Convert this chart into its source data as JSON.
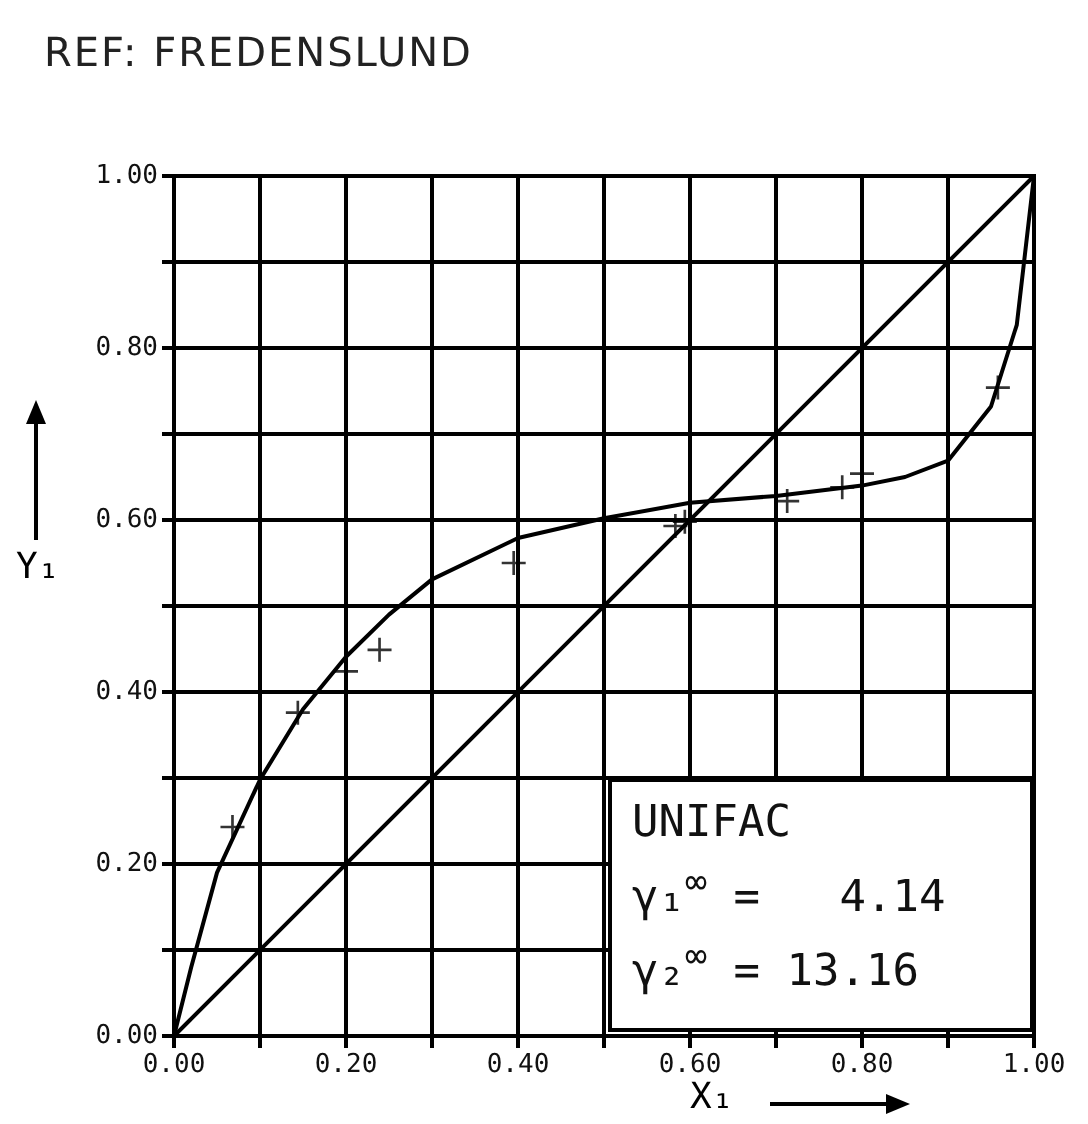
{
  "chart_data": {
    "type": "scatter",
    "title": "REF: FREDENSLUND",
    "xlabel": "X₁",
    "ylabel": "Y₁",
    "annotations": [
      "UNIFAC",
      "γ₁$^{∞}$ =   4.14",
      "γ₂$^{∞}$ = 13.16"
    ],
    "series": [
      {
        "color": "#000000",
        "marker": "cross",
        "x": [
          0.068,
          0.144,
          0.2,
          0.239,
          0.395,
          0.583,
          0.594,
          0.713,
          0.777,
          0.8,
          0.958
        ],
        "values": [
          0.243,
          0.376,
          0.424,
          0.449,
          0.55,
          0.593,
          0.598,
          0.622,
          0.638,
          0.654,
          0.754
        ]
      },
      {
        "type": "line",
        "color": "#000000",
        "marker": "none",
        "x": [
          0,
          0.02,
          0.05,
          0.1,
          0.15,
          0.2,
          0.25,
          0.3,
          0.4,
          0.5,
          0.6,
          0.7,
          0.8,
          0.85,
          0.9,
          0.95,
          0.98,
          1
        ],
        "values": [
          0,
          0.08,
          0.19,
          0.298,
          0.38,
          0.441,
          0.49,
          0.531,
          0.579,
          0.602,
          0.62,
          0.628,
          0.64,
          0.65,
          0.669,
          0.732,
          0.827,
          1
        ]
      },
      {
        "type": "line",
        "color": "#000000",
        "marker": "none",
        "x": [
          0,
          1
        ],
        "values": [
          0,
          1
        ]
      }
    ],
    "xlim": [
      0,
      1
    ],
    "ylim": [
      0,
      1
    ],
    "xticks": [
      {
        "value": 0,
        "label": "0.00"
      },
      {
        "value": 0.1,
        "label": null
      },
      {
        "value": 0.2,
        "label": "0.20"
      },
      {
        "value": 0.3,
        "label": null
      },
      {
        "value": 0.4,
        "label": "0.40"
      },
      {
        "value": 0.5,
        "label": null
      },
      {
        "value": 0.6,
        "label": "0.60"
      },
      {
        "value": 0.7,
        "label": null
      },
      {
        "value": 0.8,
        "label": "0.80"
      },
      {
        "value": 0.9,
        "label": null
      },
      {
        "value": 1,
        "label": "1.00"
      }
    ],
    "yticks": [
      {
        "value": 0,
        "label": "0.00"
      },
      {
        "value": 0.1,
        "label": null
      },
      {
        "value": 0.2,
        "label": "0.20"
      },
      {
        "value": 0.3,
        "label": null
      },
      {
        "value": 0.4,
        "label": "0.40"
      },
      {
        "value": 0.5,
        "label": null
      },
      {
        "value": 0.6,
        "label": "0.60"
      },
      {
        "value": 0.7,
        "label": null
      },
      {
        "value": 0.8,
        "label": "0.80"
      },
      {
        "value": 0.9,
        "label": null
      },
      {
        "value": 1,
        "label": "1.00"
      }
    ],
    "grid": true
  }
}
